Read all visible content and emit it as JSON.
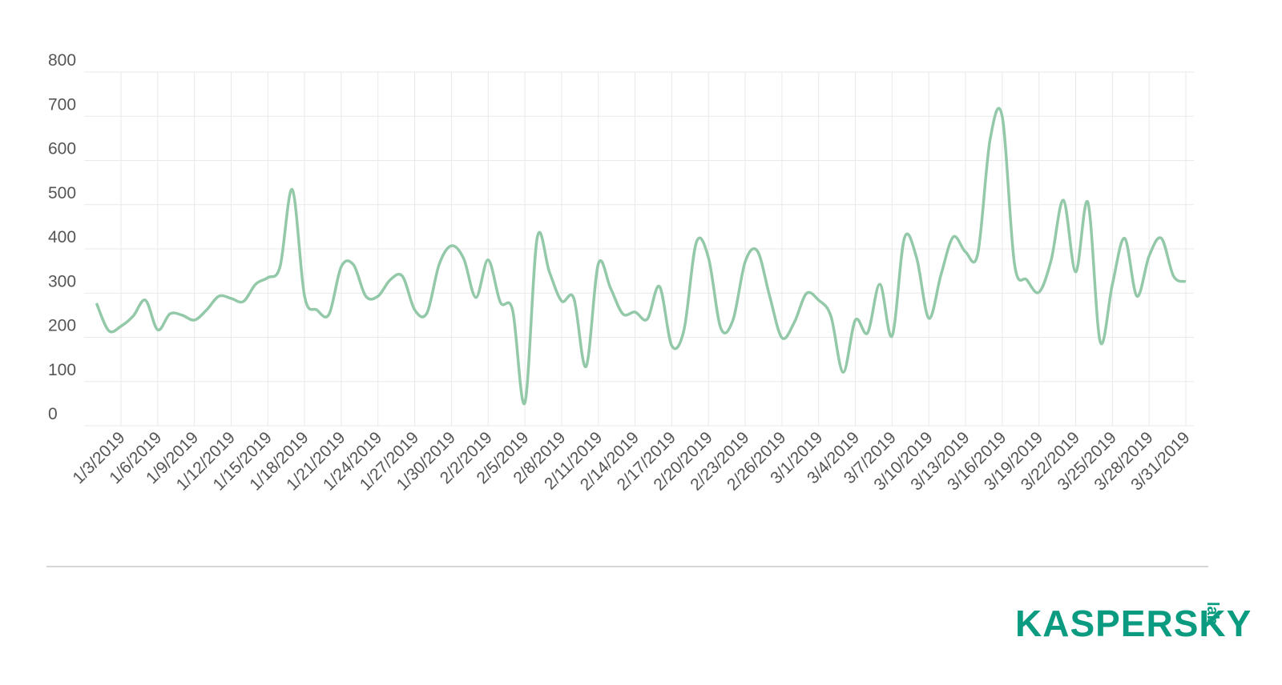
{
  "chart_data": {
    "type": "line",
    "categories": [
      null,
      null,
      "1/3/2019",
      null,
      null,
      "1/6/2019",
      null,
      null,
      "1/9/2019",
      null,
      null,
      "1/12/2019",
      null,
      null,
      "1/15/2019",
      null,
      null,
      "1/18/2019",
      null,
      null,
      "1/21/2019",
      null,
      null,
      "1/24/2019",
      null,
      null,
      "1/27/2019",
      null,
      null,
      "1/30/2019",
      null,
      null,
      "2/2/2019",
      null,
      null,
      "2/5/2019",
      null,
      null,
      "2/8/2019",
      null,
      null,
      "2/11/2019",
      null,
      null,
      "2/14/2019",
      null,
      null,
      "2/17/2019",
      null,
      null,
      "2/20/2019",
      null,
      null,
      "2/23/2019",
      null,
      null,
      "2/26/2019",
      null,
      null,
      "3/1/2019",
      null,
      null,
      "3/4/2019",
      null,
      null,
      "3/7/2019",
      null,
      null,
      "3/10/2019",
      null,
      null,
      "3/13/2019",
      null,
      null,
      "3/16/2019",
      null,
      null,
      "3/19/2019",
      null,
      null,
      "3/22/2019",
      null,
      null,
      "3/25/2019",
      null,
      null,
      "3/28/2019",
      null,
      null,
      "3/31/2019"
    ],
    "values": [
      277,
      215,
      225,
      248,
      284,
      217,
      253,
      250,
      239,
      262,
      293,
      288,
      281,
      320,
      335,
      360,
      534,
      293,
      262,
      252,
      360,
      364,
      293,
      293,
      330,
      338,
      262,
      255,
      365,
      407,
      378,
      290,
      375,
      279,
      261,
      52,
      424,
      348,
      282,
      288,
      134,
      366,
      311,
      253,
      257,
      241,
      315,
      181,
      217,
      414,
      380,
      221,
      239,
      371,
      395,
      293,
      199,
      233,
      299,
      284,
      248,
      121,
      239,
      210,
      320,
      203,
      424,
      380,
      243,
      342,
      427,
      393,
      389,
      646,
      699,
      366,
      330,
      302,
      375,
      510,
      348,
      505,
      190,
      320,
      424,
      293,
      384,
      424,
      338,
      326
    ],
    "color": "#93c9a8",
    "ylim": [
      0,
      800
    ],
    "yticks": [
      0,
      100,
      200,
      300,
      400,
      500,
      600,
      700,
      800
    ],
    "grid": true
  },
  "logo": {
    "name": "KASPERSKY",
    "sub": "lab"
  }
}
